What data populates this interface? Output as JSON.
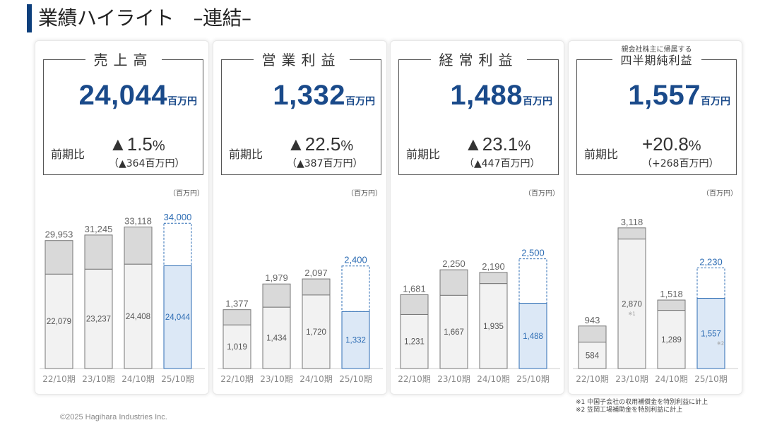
{
  "page": {
    "title": "業績ハイライト　–連結–",
    "copyright": "©2025 Hagihara Industries Inc.",
    "footnotes": [
      "※1 中国子会社の収用補償金を特別利益に計上",
      "※2 笠岡工場補助金を特別利益に計上"
    ]
  },
  "colors": {
    "accent": "#1a4a8a",
    "bar_gray": "#d9d9d9",
    "bar_light": "#f2f2f2",
    "bar_blue": "#dce8f6",
    "forecast_border": "#2e6db4"
  },
  "panels": [
    {
      "label": "売上高",
      "sublabel": "",
      "value": "24,044",
      "unit": "百万円",
      "yoy_label": "前期比",
      "yoy_pct": "▲1.5",
      "yoy_pct_sign": "%",
      "yoy_amount": "（▲364百万円）",
      "unit_note": "（百万円）"
    },
    {
      "label": "営業利益",
      "sublabel": "",
      "value": "1,332",
      "unit": "百万円",
      "yoy_label": "前期比",
      "yoy_pct": "▲22.5",
      "yoy_pct_sign": "%",
      "yoy_amount": "（▲387百万円）",
      "unit_note": "（百万円）"
    },
    {
      "label": "経常利益",
      "sublabel": "",
      "value": "1,488",
      "unit": "百万円",
      "yoy_label": "前期比",
      "yoy_pct": "▲23.1",
      "yoy_pct_sign": "%",
      "yoy_amount": "（▲447百万円）",
      "unit_note": "（百万円）"
    },
    {
      "label": "四半期純利益",
      "sublabel": "親会社株主に帰属する",
      "value": "1,557",
      "unit": "百万円",
      "yoy_label": "前期比",
      "yoy_pct": "+20.8",
      "yoy_pct_sign": "%",
      "yoy_amount": "（+268百万円）",
      "unit_note": "（百万円）"
    }
  ],
  "chart_data": [
    {
      "type": "bar",
      "title": "売上高",
      "categories": [
        "22/10期",
        "23/10期",
        "24/10期",
        "25/10期"
      ],
      "series": [
        {
          "name": "",
          "values": [
            22079,
            23237,
            24408,
            24044
          ]
        },
        {
          "name": "",
          "values": [
            29953,
            31245,
            33118,
            34000
          ]
        }
      ],
      "value_labels_inner": [
        "22,079",
        "23,237",
        "24,408",
        "24,044"
      ],
      "value_labels_total": [
        "29,953",
        "31,245",
        "33,118",
        "34,000"
      ],
      "marks": [
        "",
        "",
        "",
        ""
      ],
      "ylim": [
        0,
        38000
      ]
    },
    {
      "type": "bar",
      "title": "営業利益",
      "categories": [
        "22/10期",
        "23/10期",
        "24/10期",
        "25/10期"
      ],
      "series": [
        {
          "name": "",
          "values": [
            1019,
            1434,
            1720,
            1332
          ]
        },
        {
          "name": "",
          "values": [
            1377,
            1979,
            2097,
            2400
          ]
        }
      ],
      "value_labels_inner": [
        "1,019",
        "1,434",
        "1,720",
        "1,332"
      ],
      "value_labels_total": [
        "1,377",
        "1,979",
        "2,097",
        "2,400"
      ],
      "marks": [
        "",
        "",
        "",
        ""
      ],
      "ylim": [
        0,
        3800
      ]
    },
    {
      "type": "bar",
      "title": "経常利益",
      "categories": [
        "22/10期",
        "23/10期",
        "24/10期",
        "25/10期"
      ],
      "series": [
        {
          "name": "",
          "values": [
            1231,
            1667,
            1935,
            1488
          ]
        },
        {
          "name": "",
          "values": [
            1681,
            2250,
            2190,
            2500
          ]
        }
      ],
      "value_labels_inner": [
        "1,231",
        "1,667",
        "1,935",
        "1,488"
      ],
      "value_labels_total": [
        "1,681",
        "2,250",
        "2,190",
        "2,500"
      ],
      "marks": [
        "",
        "",
        "",
        ""
      ],
      "ylim": [
        0,
        3700
      ]
    },
    {
      "type": "bar",
      "title": "四半期純利益",
      "categories": [
        "22/10期",
        "23/10期",
        "24/10期",
        "25/10期"
      ],
      "series": [
        {
          "name": "",
          "values": [
            584,
            2870,
            1289,
            1557
          ]
        },
        {
          "name": "",
          "values": [
            943,
            3118,
            1518,
            2230
          ]
        }
      ],
      "value_labels_inner": [
        "584",
        "2,870",
        "1,289",
        "1,557"
      ],
      "value_labels_total": [
        "943",
        "3,118",
        "1,518",
        "2,230"
      ],
      "marks": [
        "",
        "※1",
        "",
        "※2"
      ],
      "ylim": [
        0,
        3600
      ]
    }
  ]
}
